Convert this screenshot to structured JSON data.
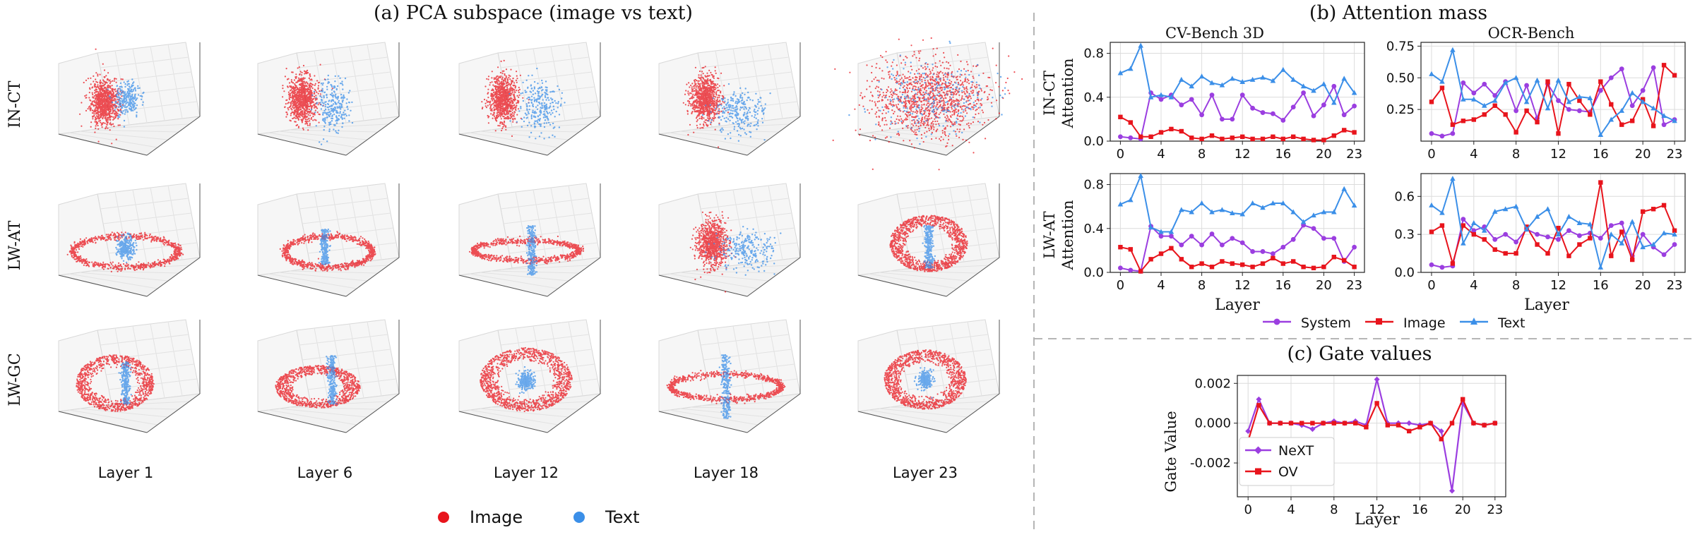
{
  "colors": {
    "image": "#e8141c",
    "text": "#3b8fe8",
    "system": "#9b3ee0",
    "divider": "#b5b5b5"
  },
  "pca": {
    "title": "(a) PCA subspace (image vs text)",
    "rows": [
      "IN-CT",
      "LW-AT",
      "LW-GC"
    ],
    "columns": [
      "Layer 1",
      "Layer 6",
      "Layer 12",
      "Layer 18",
      "Layer 23"
    ],
    "legend": [
      {
        "label": "Image",
        "color": "#e8141c"
      },
      {
        "label": "Text",
        "color": "#3b8fe8"
      }
    ]
  },
  "attention": {
    "title": "(b) Attention mass",
    "benchmarks": [
      "CV-Bench 3D",
      "OCR-Bench"
    ],
    "xlabel": "Layer",
    "xticks": [
      0,
      4,
      8,
      12,
      16,
      20,
      23
    ],
    "legend": [
      "System",
      "Image",
      "Text"
    ]
  },
  "gate": {
    "title": "(c) Gate values",
    "xlabel": "Layer",
    "ylabel": "Gate Value",
    "legend": [
      "NeXT",
      "OV"
    ]
  },
  "chart_data": [
    {
      "type": "line",
      "title": "CV-Bench 3D",
      "row": "IN-CT",
      "ylabel": "IN-CT Attention",
      "xlabel": "",
      "x": [
        0,
        1,
        2,
        3,
        4,
        5,
        6,
        7,
        8,
        9,
        10,
        11,
        12,
        13,
        14,
        15,
        16,
        17,
        18,
        19,
        20,
        21,
        22,
        23
      ],
      "ylim": [
        0,
        0.9
      ],
      "yticks": [
        0.0,
        0.4,
        0.8
      ],
      "series": [
        {
          "name": "System",
          "values": [
            0.04,
            0.03,
            0.02,
            0.44,
            0.38,
            0.42,
            0.33,
            0.38,
            0.24,
            0.42,
            0.2,
            0.2,
            0.42,
            0.3,
            0.26,
            0.25,
            0.19,
            0.31,
            0.44,
            0.23,
            0.33,
            0.5,
            0.24,
            0.32
          ]
        },
        {
          "name": "Image",
          "values": [
            0.22,
            0.17,
            0.04,
            0.04,
            0.08,
            0.11,
            0.09,
            0.03,
            0.02,
            0.05,
            0.02,
            0.03,
            0.04,
            0.02,
            0.02,
            0.04,
            0.02,
            0.04,
            0.02,
            0.01,
            0.01,
            0.05,
            0.1,
            0.08
          ]
        },
        {
          "name": "Text",
          "values": [
            0.62,
            0.66,
            0.87,
            0.4,
            0.42,
            0.4,
            0.56,
            0.5,
            0.59,
            0.53,
            0.51,
            0.57,
            0.54,
            0.56,
            0.58,
            0.55,
            0.65,
            0.56,
            0.5,
            0.46,
            0.52,
            0.35,
            0.57,
            0.44
          ]
        }
      ]
    },
    {
      "type": "line",
      "title": "OCR-Bench",
      "row": "IN-CT",
      "xlabel": "",
      "x": [
        0,
        1,
        2,
        3,
        4,
        5,
        6,
        7,
        8,
        9,
        10,
        11,
        12,
        13,
        14,
        15,
        16,
        17,
        18,
        19,
        20,
        21,
        22,
        23
      ],
      "ylim": [
        0.0,
        0.78
      ],
      "yticks": [
        0.25,
        0.5,
        0.75
      ],
      "series": [
        {
          "name": "System",
          "values": [
            0.06,
            0.04,
            0.06,
            0.46,
            0.38,
            0.45,
            0.36,
            0.47,
            0.24,
            0.44,
            0.18,
            0.45,
            0.32,
            0.25,
            0.24,
            0.23,
            0.4,
            0.5,
            0.57,
            0.28,
            0.4,
            0.58,
            0.13,
            0.17
          ]
        },
        {
          "name": "Image",
          "values": [
            0.31,
            0.42,
            0.13,
            0.16,
            0.17,
            0.21,
            0.28,
            0.21,
            0.07,
            0.24,
            0.15,
            0.47,
            0.06,
            0.45,
            0.32,
            0.21,
            0.47,
            0.29,
            0.13,
            0.16,
            0.33,
            0.12,
            0.6,
            0.52
          ]
        },
        {
          "name": "Text",
          "values": [
            0.53,
            0.47,
            0.72,
            0.33,
            0.33,
            0.28,
            0.32,
            0.46,
            0.5,
            0.31,
            0.48,
            0.26,
            0.48,
            0.31,
            0.35,
            0.34,
            0.05,
            0.17,
            0.24,
            0.38,
            0.31,
            0.26,
            0.2,
            0.16
          ]
        }
      ]
    },
    {
      "type": "line",
      "title": "CV-Bench 3D",
      "row": "LW-AT",
      "ylabel": "LW-AT Attention",
      "xlabel": "Layer",
      "x": [
        0,
        1,
        2,
        3,
        4,
        5,
        6,
        7,
        8,
        9,
        10,
        11,
        12,
        13,
        14,
        15,
        16,
        17,
        18,
        19,
        20,
        21,
        22,
        23
      ],
      "ylim": [
        0,
        0.9
      ],
      "yticks": [
        0.0,
        0.4,
        0.8
      ],
      "series": [
        {
          "name": "System",
          "values": [
            0.04,
            0.02,
            0.01,
            0.42,
            0.33,
            0.33,
            0.25,
            0.33,
            0.25,
            0.35,
            0.25,
            0.31,
            0.27,
            0.19,
            0.19,
            0.17,
            0.23,
            0.3,
            0.43,
            0.4,
            0.31,
            0.31,
            0.1,
            0.23
          ]
        },
        {
          "name": "Image",
          "values": [
            0.23,
            0.21,
            0.01,
            0.12,
            0.17,
            0.22,
            0.12,
            0.05,
            0.08,
            0.05,
            0.1,
            0.08,
            0.07,
            0.05,
            0.08,
            0.13,
            0.08,
            0.1,
            0.05,
            0.04,
            0.05,
            0.14,
            0.11,
            0.05
          ]
        },
        {
          "name": "Text",
          "values": [
            0.62,
            0.66,
            0.88,
            0.41,
            0.37,
            0.37,
            0.57,
            0.55,
            0.63,
            0.55,
            0.57,
            0.54,
            0.53,
            0.63,
            0.59,
            0.63,
            0.63,
            0.55,
            0.46,
            0.52,
            0.55,
            0.55,
            0.76,
            0.61
          ]
        }
      ]
    },
    {
      "type": "line",
      "title": "OCR-Bench",
      "row": "LW-AT",
      "xlabel": "Layer",
      "x": [
        0,
        1,
        2,
        3,
        4,
        5,
        6,
        7,
        8,
        9,
        10,
        11,
        12,
        13,
        14,
        15,
        16,
        17,
        18,
        19,
        20,
        21,
        22,
        23
      ],
      "ylim": [
        0.0,
        0.78
      ],
      "yticks": [
        0.0,
        0.3,
        0.6
      ],
      "series": [
        {
          "name": "System",
          "values": [
            0.06,
            0.04,
            0.05,
            0.42,
            0.33,
            0.36,
            0.26,
            0.3,
            0.24,
            0.34,
            0.3,
            0.28,
            0.26,
            0.33,
            0.29,
            0.31,
            0.27,
            0.37,
            0.39,
            0.13,
            0.3,
            0.2,
            0.14,
            0.22
          ]
        },
        {
          "name": "Image",
          "values": [
            0.32,
            0.37,
            0.07,
            0.37,
            0.3,
            0.26,
            0.18,
            0.15,
            0.15,
            0.36,
            0.22,
            0.15,
            0.35,
            0.13,
            0.22,
            0.27,
            0.71,
            0.13,
            0.32,
            0.1,
            0.48,
            0.5,
            0.53,
            0.33
          ]
        },
        {
          "name": "Text",
          "values": [
            0.53,
            0.47,
            0.74,
            0.23,
            0.39,
            0.33,
            0.48,
            0.5,
            0.52,
            0.34,
            0.44,
            0.5,
            0.3,
            0.44,
            0.39,
            0.38,
            0.04,
            0.3,
            0.23,
            0.4,
            0.2,
            0.22,
            0.31,
            0.3
          ]
        }
      ]
    },
    {
      "type": "line",
      "title": "(c) Gate values",
      "xlabel": "Layer",
      "ylabel": "Gate Value",
      "x": [
        0,
        1,
        2,
        3,
        4,
        5,
        6,
        7,
        8,
        9,
        10,
        11,
        12,
        13,
        14,
        15,
        16,
        17,
        18,
        19,
        20,
        21,
        22,
        23
      ],
      "ylim": [
        -0.0037,
        0.0024
      ],
      "yticks": [
        -0.002,
        0.0,
        0.002
      ],
      "series": [
        {
          "name": "NeXT",
          "values": [
            -0.0004,
            0.0012,
            0.0,
            0.0,
            0.0,
            -0.0001,
            -0.0003,
            0.0,
            0.0001,
            0.0,
            0.0001,
            -0.0001,
            0.0022,
            0.0,
            0.0,
            0.0,
            -0.0001,
            0.0,
            -0.0004,
            -0.0034,
            0.001,
            0.0,
            -0.0001,
            0.0
          ]
        },
        {
          "name": "OV",
          "values": [
            -0.0009,
            0.0009,
            0.0,
            0.0,
            0.0,
            0.0,
            0.0,
            0.0,
            0.0,
            0.0,
            0.0,
            -0.0002,
            0.001,
            -0.0001,
            -0.0001,
            -0.0004,
            -0.0002,
            0.0,
            -0.0008,
            0.0,
            0.0012,
            0.0,
            -0.0001,
            0.0
          ]
        }
      ]
    }
  ]
}
